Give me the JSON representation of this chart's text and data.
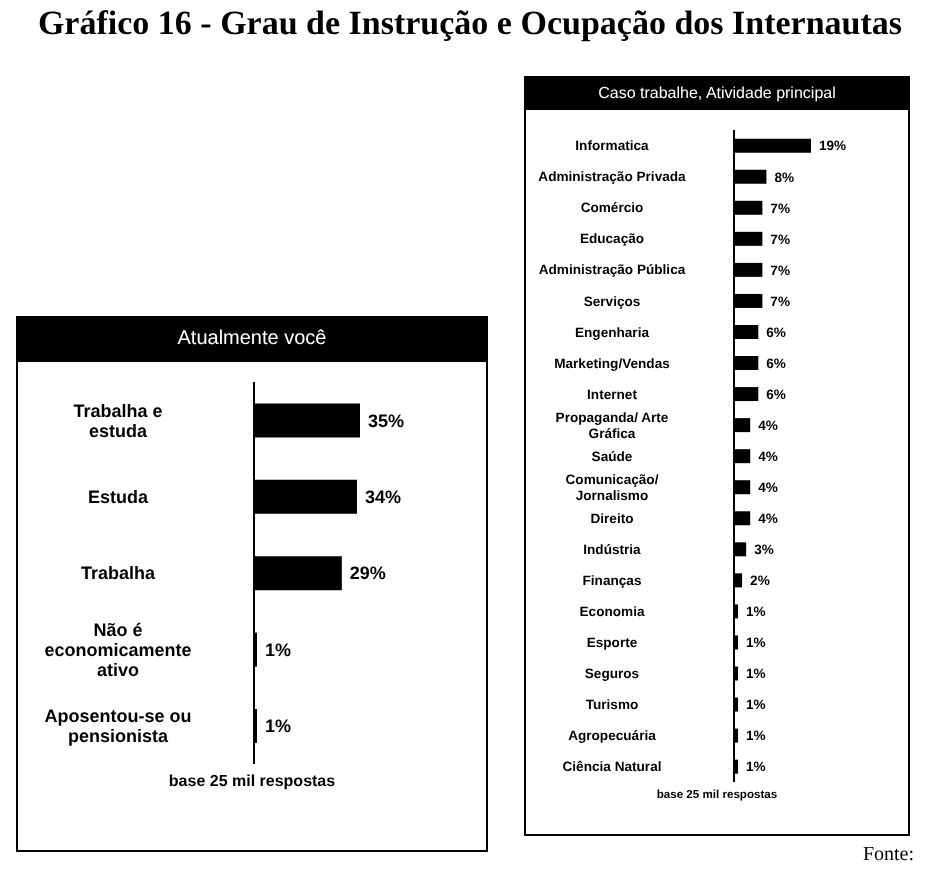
{
  "chart_data": [
    {
      "type": "bar",
      "orientation": "horizontal",
      "title": "Gráfico 16 - Grau de Instrução e Ocupação dos Internautas",
      "subtitle": "Atualmente você",
      "categories": [
        "Trabalha e estuda",
        "Estuda",
        "Trabalha",
        "Não é economicamente ativo",
        "Aposentou-se ou pensionista"
      ],
      "values": [
        35,
        34,
        29,
        1,
        1
      ],
      "value_labels": [
        "35%",
        "34%",
        "29%",
        "1%",
        "1%"
      ],
      "color": "#000000",
      "tick_labels": "y",
      "grid": false,
      "legend": false,
      "annotations": [
        "base 25 mil respostas"
      ]
    },
    {
      "type": "bar",
      "orientation": "horizontal",
      "subtitle": "Caso trabalhe, Atividade principal",
      "categories": [
        "Informatica",
        "Administração Privada",
        "Comércio",
        "Educação",
        "Administração Pública",
        "Serviços",
        "Engenharia",
        "Marketing/Vendas",
        "Internet",
        "Propaganda/ Arte Gráfica",
        "Saúde",
        "Comunicação/ Jornalismo",
        "Direito",
        "Indústria",
        "Finanças",
        "Economia",
        "Esporte",
        "Seguros",
        "Turismo",
        "Agropecuária",
        "Ciência Natural"
      ],
      "values": [
        19,
        8,
        7,
        7,
        7,
        7,
        6,
        6,
        6,
        4,
        4,
        4,
        4,
        3,
        2,
        1,
        1,
        1,
        1,
        1,
        1
      ],
      "value_labels": [
        "19%",
        "8%",
        "7%",
        "7%",
        "7%",
        "7%",
        "6%",
        "6%",
        "6%",
        "4%",
        "4%",
        "4%",
        "4%",
        "3%",
        "2%",
        "1%",
        "1%",
        "1%",
        "1%",
        "1%",
        "1%"
      ],
      "color": "#000000",
      "tick_labels": "y",
      "grid": false,
      "legend": false,
      "annotations": [
        "base 25 mil respostas",
        "Fonte:"
      ]
    }
  ]
}
